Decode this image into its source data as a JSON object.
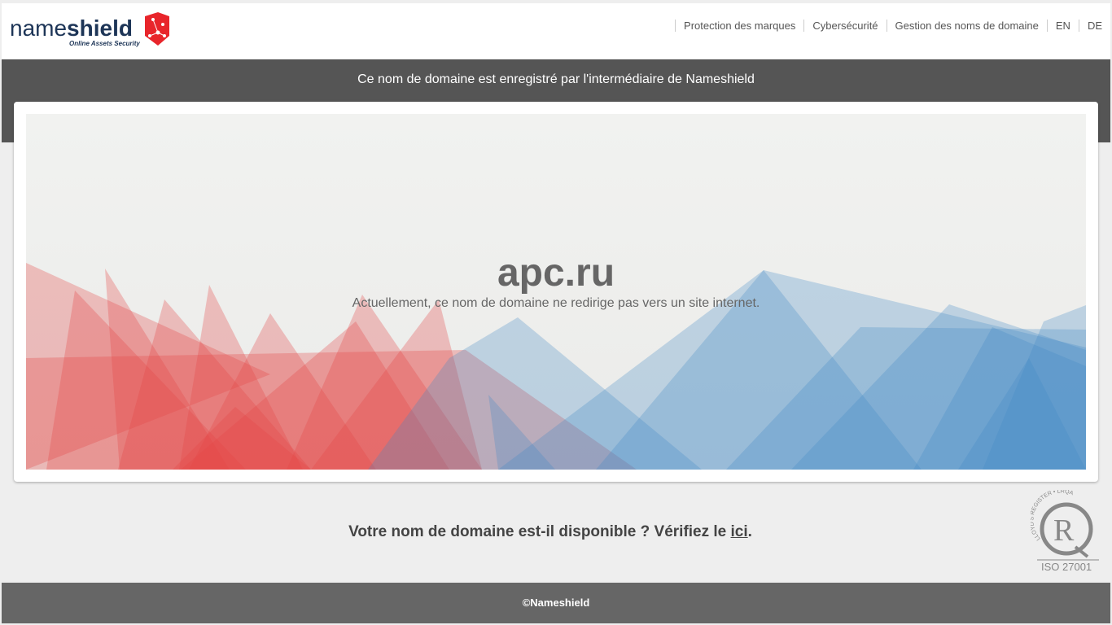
{
  "header": {
    "logo_text": "nameshield",
    "logo_tagline": "Online Assets Security",
    "nav": [
      {
        "label": "Protection des marques"
      },
      {
        "label": "Cybersécurité"
      },
      {
        "label": "Gestion des noms de domaine"
      },
      {
        "label": "EN"
      },
      {
        "label": "DE"
      }
    ]
  },
  "banner": {
    "text": "Ce nom de domaine est enregistré par l'intermédiaire de Nameshield"
  },
  "hero": {
    "domain": "apc.ru",
    "message": "Actuellement, ce nom de domaine ne redirige pas vers un site internet."
  },
  "availability": {
    "text": "Votre nom de domaine est-il disponible ? Vérifiez le ",
    "link": "ici",
    "suffix": "."
  },
  "certification": {
    "badge": "ISO 27001",
    "ring_text": "LLOYD'S REGISTER • LRQA"
  },
  "footer": {
    "copyright": "©Nameshield"
  },
  "colors": {
    "brand_red": "#e8252b",
    "brand_navy": "#1d3557",
    "banner": "#555555",
    "footer": "#666666"
  }
}
